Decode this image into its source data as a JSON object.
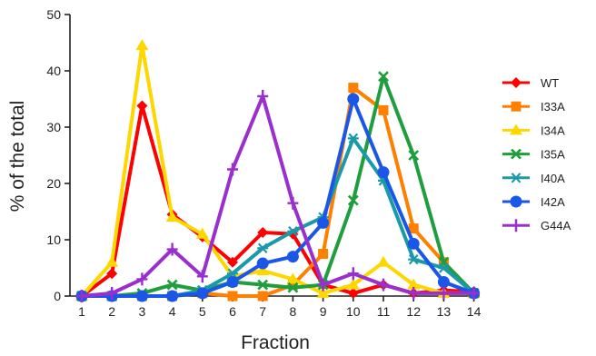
{
  "chart_data": {
    "type": "line",
    "title": "",
    "xlabel": "Fraction",
    "ylabel": "% of the total",
    "categories": [
      "1",
      "2",
      "3",
      "4",
      "5",
      "6",
      "7",
      "8",
      "9",
      "10",
      "11",
      "12",
      "13",
      "14"
    ],
    "ylim": [
      0,
      50
    ],
    "yticks": [
      "0",
      "10",
      "20",
      "30",
      "40",
      "50"
    ],
    "grid": false,
    "legend_position": "right",
    "series": [
      {
        "name": "WT",
        "color": "#ff0000",
        "marker": "diamond",
        "values": [
          0,
          4,
          33.8,
          14.5,
          10.5,
          6,
          11.3,
          11,
          2,
          0.5,
          2,
          0.5,
          1,
          0.8
        ]
      },
      {
        "name": "I33A",
        "color": "#ff8000",
        "marker": "square",
        "values": [
          0,
          0,
          0,
          0,
          0.5,
          0,
          0,
          2,
          7.5,
          37,
          33,
          12,
          6,
          0.5
        ]
      },
      {
        "name": "I34A",
        "color": "#ffd700",
        "marker": "triangle",
        "values": [
          0,
          6,
          44.5,
          14,
          11,
          3.5,
          4.5,
          3,
          0.5,
          2,
          6,
          2,
          0.5,
          0.5
        ]
      },
      {
        "name": "I35A",
        "color": "#1e9e3c",
        "marker": "x",
        "values": [
          0,
          0,
          0.5,
          2,
          1,
          2.5,
          2,
          1.5,
          2,
          17,
          39,
          25,
          6,
          0.5
        ]
      },
      {
        "name": "I40A",
        "color": "#1a9aa8",
        "marker": "asterisk",
        "values": [
          0,
          0,
          0,
          0,
          1,
          4,
          8.5,
          11.5,
          14,
          28,
          20.5,
          6.5,
          5,
          0.5
        ]
      },
      {
        "name": "I42A",
        "color": "#1a56e8",
        "marker": "circle",
        "values": [
          0,
          0,
          0,
          0,
          0.5,
          2.5,
          5.8,
          7,
          13,
          35,
          22,
          9.3,
          2.5,
          0.5
        ]
      },
      {
        "name": "G44A",
        "color": "#9a2fd0",
        "marker": "plus",
        "values": [
          0,
          0.5,
          3,
          8.3,
          3.5,
          22.5,
          35.5,
          16.5,
          2,
          4,
          2,
          0.5,
          0.5,
          0.5
        ]
      }
    ]
  }
}
